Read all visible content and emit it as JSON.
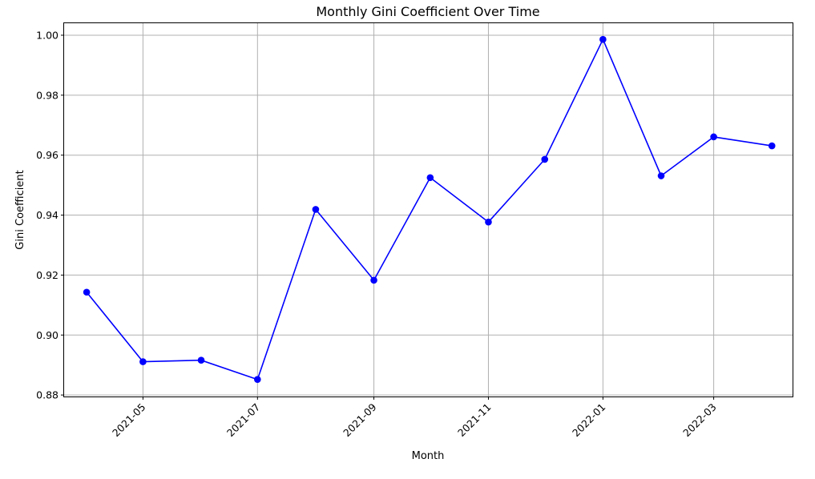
{
  "chart_data": {
    "type": "line",
    "title": "Monthly Gini Coefficient Over Time",
    "xlabel": "Month",
    "ylabel": "Gini Coefficient",
    "x_tick_labels": [
      "2021-05",
      "2021-07",
      "2021-09",
      "2021-11",
      "2022-01",
      "2022-03"
    ],
    "x_tick_dates": [
      "2021-05-01",
      "2021-07-01",
      "2021-09-01",
      "2021-11-01",
      "2022-01-01",
      "2022-03-01"
    ],
    "x_range": [
      "2021-03-20",
      "2022-04-12"
    ],
    "y_ticks": [
      0.88,
      0.9,
      0.92,
      0.94,
      0.96,
      0.98,
      1.0
    ],
    "y_tick_labels": [
      "0.88",
      "0.90",
      "0.92",
      "0.94",
      "0.96",
      "0.98",
      "1.00"
    ],
    "ylim": [
      0.8795,
      1.004
    ],
    "grid": true,
    "line_color": "#0000ff",
    "marker": "circle",
    "series": [
      {
        "x": [
          "2021-04-01",
          "2021-05-01",
          "2021-06-01",
          "2021-07-01",
          "2021-08-01",
          "2021-09-01",
          "2021-10-01",
          "2021-11-01",
          "2021-12-01",
          "2022-01-01",
          "2022-02-01",
          "2022-03-01",
          "2022-04-01"
        ],
        "values": [
          0.9143,
          0.8911,
          0.8916,
          0.8852,
          0.9419,
          0.9183,
          0.9525,
          0.9377,
          0.9586,
          0.9986,
          0.9531,
          0.9661,
          0.9631
        ]
      }
    ]
  }
}
